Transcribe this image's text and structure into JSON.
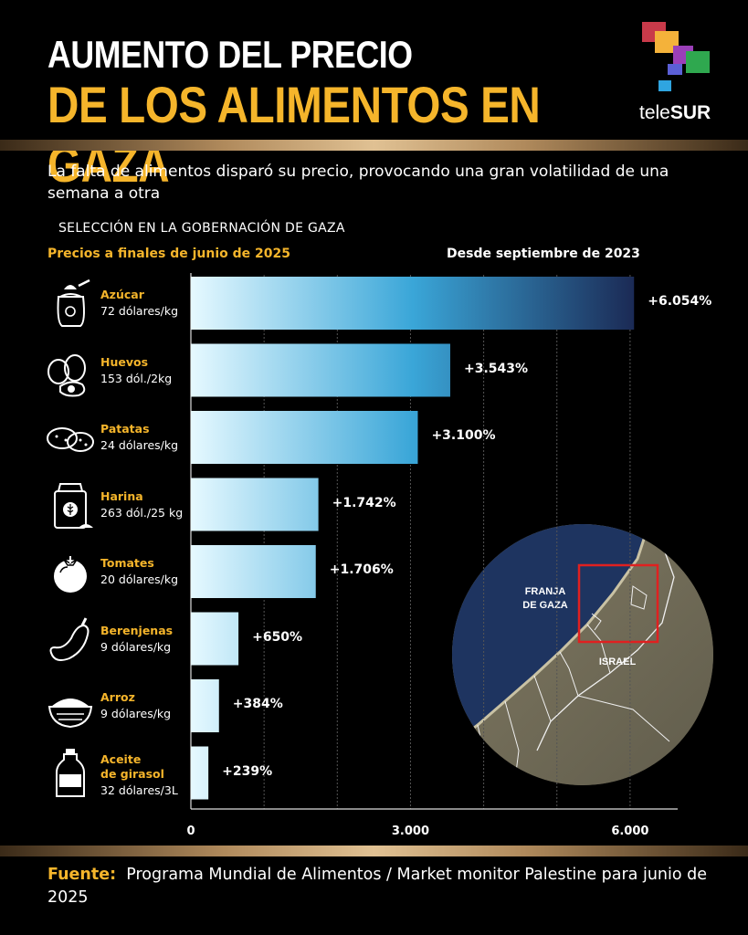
{
  "header": {
    "title_line1": "AUMENTO DEL PRECIO",
    "title_line2": "DE LOS ALIMENTOS EN GAZA",
    "logo_text_a": "tele",
    "logo_text_b": "SUR"
  },
  "subtitle": "La falta de alimentos disparó su precio, provocando una gran volatilidad de una semana a otra",
  "section_label": "SELECCIÓN EN LA GOBERNACIÓN DE GAZA",
  "prices_header": "Precios a finales de junio de 2025",
  "increase_header": "Desde septiembre de 2023",
  "chart_data": {
    "type": "bar",
    "orientation": "horizontal",
    "categories": [
      "Azúcar",
      "Huevos",
      "Patatas",
      "Harina",
      "Tomates",
      "Berenjenas",
      "Arroz",
      "Aceite de girasol"
    ],
    "category_lines": [
      [
        "Azúcar"
      ],
      [
        "Huevos"
      ],
      [
        "Patatas"
      ],
      [
        "Harina"
      ],
      [
        "Tomates"
      ],
      [
        "Berenjenas"
      ],
      [
        "Arroz"
      ],
      [
        "Aceite",
        "de girasol"
      ]
    ],
    "prices": [
      "72 dólares/kg",
      "153 dól./2kg",
      "24 dólares/kg",
      "263 dól./25 kg",
      "20 dólares/kg",
      "9 dólares/kg",
      "9 dólares/kg",
      "32 dólares/3L"
    ],
    "values": [
      6054,
      3543,
      3100,
      1742,
      1706,
      650,
      384,
      239
    ],
    "value_labels": [
      "+6.054%",
      "+3.543%",
      "+3.100%",
      "+1.742%",
      "+1.706%",
      "+650%",
      "+384%",
      "+239%"
    ],
    "icons": [
      "sugar-sack-icon",
      "eggs-icon",
      "potatoes-icon",
      "flour-bag-icon",
      "tomato-icon",
      "eggplant-icon",
      "rice-bowl-icon",
      "oil-bottle-icon"
    ],
    "xlim": [
      0,
      6650
    ],
    "xticks": [
      0,
      3000,
      6000
    ],
    "xtick_labels": [
      "0",
      "3.000",
      "6.000"
    ],
    "grid": true,
    "colors": {
      "bar_start": "#e6f9ff",
      "bar_mid": "#3aa6d8",
      "bar_end": "#1b2a55"
    }
  },
  "map": {
    "label_gaza_1": "FRANJA",
    "label_gaza_2": "DE GAZA",
    "label_israel": "ISRAEL",
    "colors": {
      "sea": "#1e3460",
      "land": "#6e6a58",
      "highlight": "#e02020"
    }
  },
  "source": {
    "label": "Fuente:",
    "text": "Programa Mundial de Alimentos / Market monitor Palestine para junio de 2025"
  },
  "colors": {
    "accent": "#f5b52b",
    "background": "#000000"
  }
}
